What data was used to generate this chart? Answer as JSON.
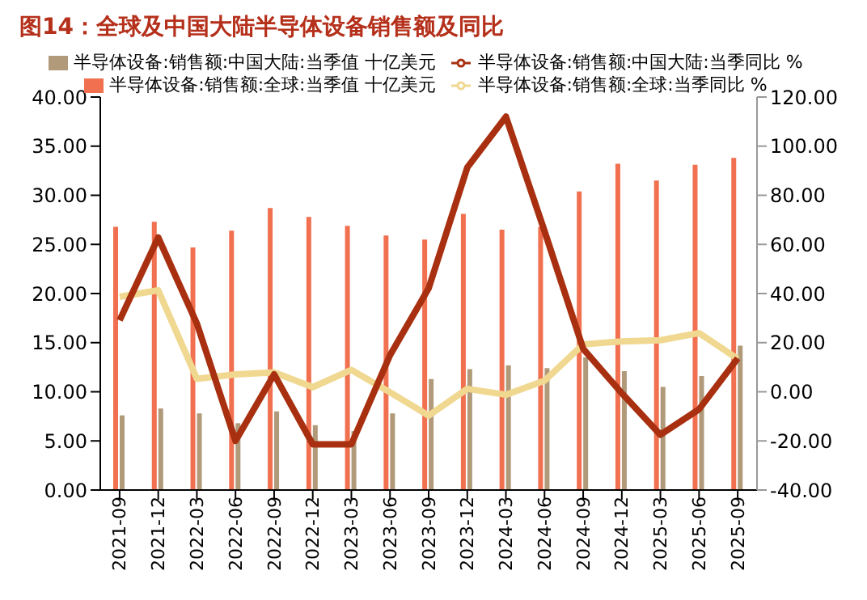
{
  "chart_data": {
    "type": "bar",
    "title": "图14：全球及中国大陆半导体设备销售额及同比",
    "categories": [
      "2021-09",
      "2021-12",
      "2022-03",
      "2022-06",
      "2022-09",
      "2022-12",
      "2023-03",
      "2023-06",
      "2023-09",
      "2023-12",
      "2024-03",
      "2024-06",
      "2024-09",
      "2024-12",
      "2025-03",
      "2025-06",
      "2025-09"
    ],
    "series": [
      {
        "name": "半导体设备:销售额:全球:当季值 十亿美元",
        "color": "#f07050",
        "values": [
          26.8,
          27.3,
          24.7,
          26.4,
          28.7,
          27.8,
          26.9,
          25.9,
          25.5,
          28.1,
          26.5,
          26.8,
          30.4,
          33.2,
          31.5,
          33.1,
          33.8
        ]
      },
      {
        "name": "半导体设备:销售额:中国大陆:当季值 十亿美元",
        "color": "#b09a7a",
        "values": [
          7.6,
          8.3,
          7.8,
          6.8,
          8.0,
          6.6,
          6.0,
          7.8,
          11.3,
          12.3,
          12.7,
          12.4,
          13.5,
          12.1,
          10.5,
          11.6,
          14.7
        ]
      },
      {
        "name": "半导体设备:销售额:全球:当季同比 %",
        "type": "line",
        "axis": "y2",
        "color": "#f0d890",
        "values": [
          38.7,
          41.3,
          5.3,
          7.1,
          7.9,
          1.9,
          8.9,
          -0.2,
          -9.7,
          1.2,
          -1.2,
          4.5,
          19.3,
          20.5,
          21,
          23.9,
          13.4
        ]
      },
      {
        "name": "半导体设备:销售额:中国大陆:当季同比 %",
        "type": "line",
        "axis": "y2",
        "color": "#a83010",
        "values": [
          29.1,
          62.8,
          27.8,
          -20,
          7.1,
          -21.4,
          -21.4,
          14.9,
          42.1,
          91.3,
          112,
          65.4,
          17.5,
          -0.6,
          -17.5,
          -7.1,
          13.6
        ]
      }
    ],
    "ylim": [
      0,
      40
    ],
    "yticks": [
      {
        "value": 0,
        "label": "0.00"
      },
      {
        "value": 5,
        "label": "5.00"
      },
      {
        "value": 10,
        "label": "10.00"
      },
      {
        "value": 15,
        "label": "15.00"
      },
      {
        "value": 20,
        "label": "20.00"
      },
      {
        "value": 25,
        "label": "25.00"
      },
      {
        "value": 30,
        "label": "30.00"
      },
      {
        "value": 35,
        "label": "35.00"
      },
      {
        "value": 40,
        "label": "40.00"
      }
    ],
    "y2lim": [
      -40,
      120
    ],
    "y2ticks": [
      {
        "value": -40,
        "label": "-40.00"
      },
      {
        "value": -20,
        "label": "-20.00"
      },
      {
        "value": 0,
        "label": "0.00"
      },
      {
        "value": 20,
        "label": "20.00"
      },
      {
        "value": 40,
        "label": "40.00"
      },
      {
        "value": 60,
        "label": "60.00"
      },
      {
        "value": 80,
        "label": "80.00"
      },
      {
        "value": 100,
        "label": "100.00"
      },
      {
        "value": 120,
        "label": "120.00"
      }
    ],
    "grid": false,
    "legend": "top",
    "marker": "none",
    "line_style": "solid"
  }
}
